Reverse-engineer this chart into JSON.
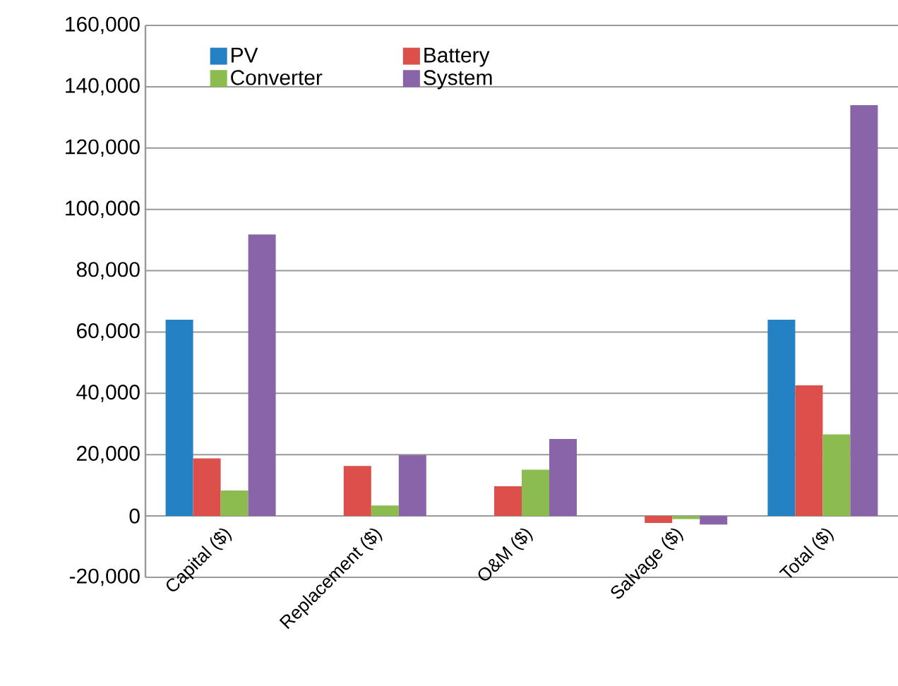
{
  "chart_data": {
    "type": "bar",
    "categories": [
      "Capital ($)",
      "Replacement ($)",
      "O&M ($)",
      "Salvage ($)",
      "Total ($)"
    ],
    "series": [
      {
        "name": "PV",
        "color": "#2481c3",
        "values": [
          64000,
          0,
          0,
          0,
          64000
        ]
      },
      {
        "name": "Battery",
        "color": "#dc4f4a",
        "values": [
          18800,
          16300,
          9700,
          -2300,
          42600
        ]
      },
      {
        "name": "Converter",
        "color": "#8cbb50",
        "values": [
          8300,
          3400,
          15100,
          -1000,
          26600
        ]
      },
      {
        "name": "System",
        "color": "#8a64a8",
        "values": [
          91800,
          19800,
          25100,
          -2800,
          134000
        ]
      }
    ],
    "ylim": [
      -20000,
      160000
    ],
    "yticks": [
      {
        "value": -20000,
        "label": "-20,000"
      },
      {
        "value": 0,
        "label": "0"
      },
      {
        "value": 20000,
        "label": "20,000"
      },
      {
        "value": 40000,
        "label": "40,000"
      },
      {
        "value": 60000,
        "label": "60,000"
      },
      {
        "value": 80000,
        "label": "80,000"
      },
      {
        "value": 100000,
        "label": "100,000"
      },
      {
        "value": 120000,
        "label": "120,000"
      },
      {
        "value": 140000,
        "label": "140,000"
      },
      {
        "value": 160000,
        "label": "160,000"
      }
    ],
    "grid": "y",
    "legend": "top left"
  }
}
